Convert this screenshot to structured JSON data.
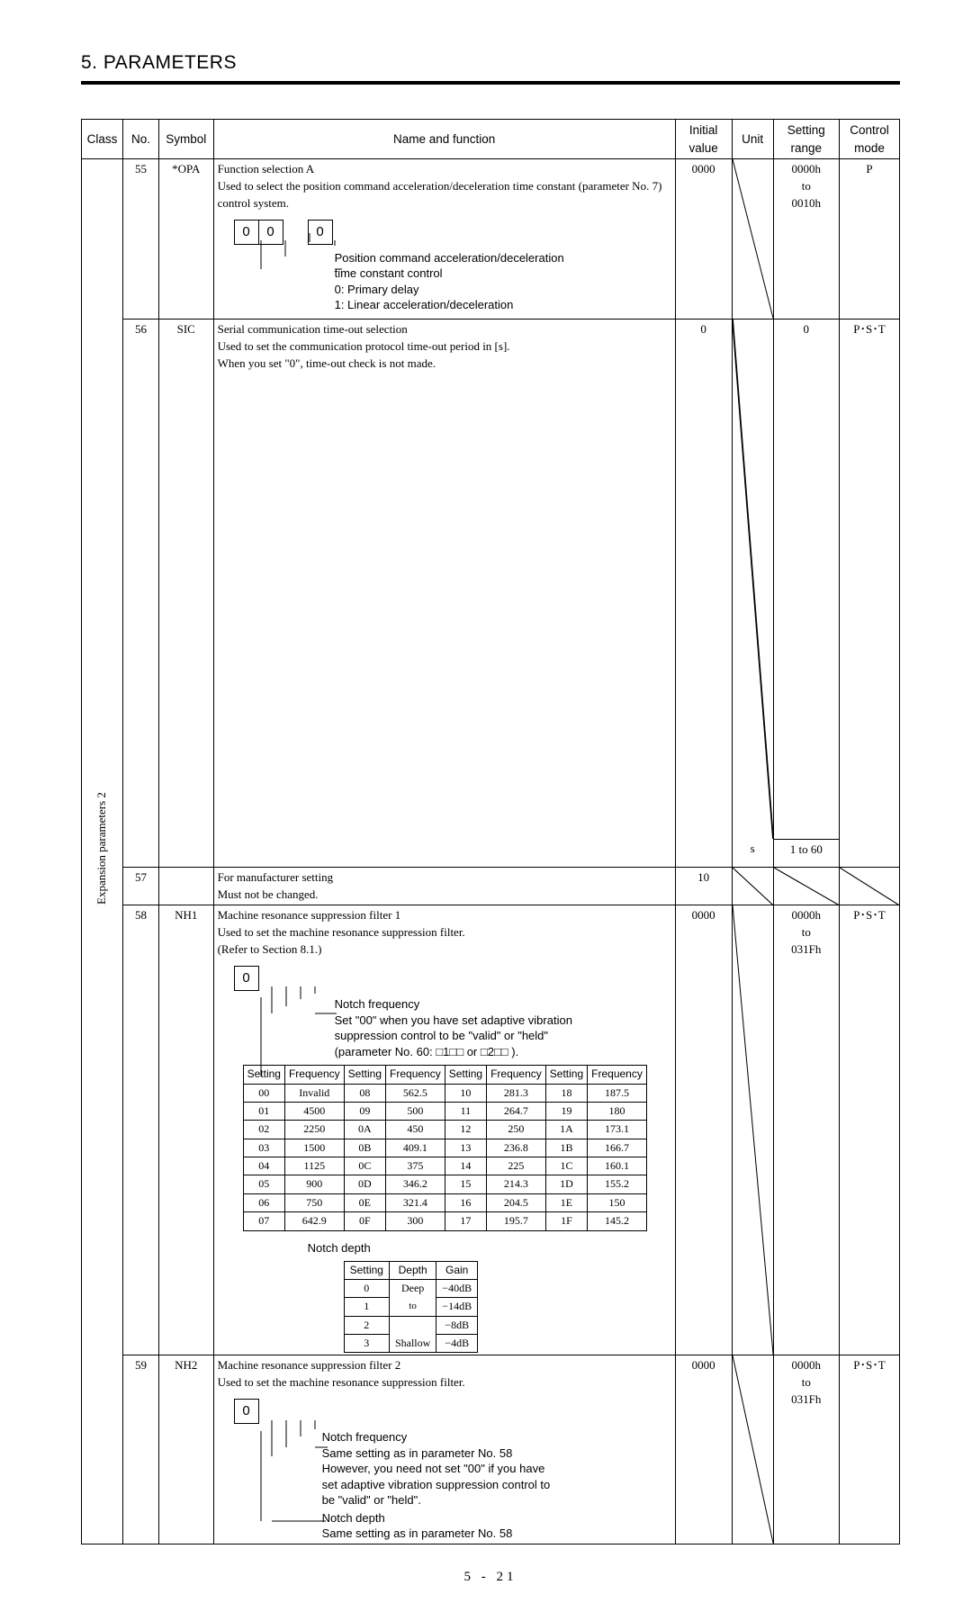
{
  "page": {
    "title": "5. PARAMETERS",
    "footer": "5 -  21"
  },
  "columns": {
    "class": "Class",
    "no": "No.",
    "symbol": "Symbol",
    "name": "Name and function",
    "initial": "Initial value",
    "unit": "Unit",
    "range": "Setting range",
    "mode": "Control mode"
  },
  "class_label": "Expansion parameters 2",
  "rows": {
    "r55": {
      "no": "55",
      "symbol": "*OPA",
      "title": "Function selection A",
      "desc1": "Used to select the position command acceleration/deceleration time constant (parameter No. 7) control system.",
      "digits": [
        "0",
        "0",
        "",
        "0"
      ],
      "digit_spacer_index": 2,
      "note_lines": [
        "Position command acceleration/deceleration",
        "time constant control",
        "0: Primary delay",
        "1: Linear acceleration/deceleration"
      ],
      "initial": "0000",
      "unit": "",
      "range": "0000h to 0010h",
      "mode": "P"
    },
    "r56": {
      "no": "56",
      "symbol": "SIC",
      "title": "Serial communication time-out selection",
      "desc1": "Used to set the communication protocol time-out period in [s].",
      "desc2": "When you set \"0\", time-out check is not made.",
      "initial": "0",
      "unit": "s",
      "range_top": "0",
      "range_bot": "1 to 60",
      "mode": "P･S･T"
    },
    "r57": {
      "no": "57",
      "symbol": "",
      "title": "For manufacturer setting",
      "desc1": "Must not be changed.",
      "initial": "10",
      "unit": "",
      "range": "",
      "mode": ""
    },
    "r58": {
      "no": "58",
      "symbol": "NH1",
      "title": "Machine resonance suppression filter 1",
      "desc1": "Used to set the machine resonance suppression filter.",
      "desc2": "(Refer to Section 8.1.)",
      "digit": "0",
      "notch_freq_label": "Notch frequency",
      "notch_freq_note": [
        "Set \"00\" when you have set adaptive vibration",
        "suppression control to be \"valid\" or \"held\"",
        "(parameter No. 60: □1□□ or □2□□ )."
      ],
      "freq_headers": [
        "Setting",
        "Frequency",
        "Setting",
        "Frequency",
        "Setting",
        "Frequency",
        "Setting",
        "Frequency"
      ],
      "freq_rows": [
        [
          "00",
          "Invalid",
          "08",
          "562.5",
          "10",
          "281.3",
          "18",
          "187.5"
        ],
        [
          "01",
          "4500",
          "09",
          "500",
          "11",
          "264.7",
          "19",
          "180"
        ],
        [
          "02",
          "2250",
          "0A",
          "450",
          "12",
          "250",
          "1A",
          "173.1"
        ],
        [
          "03",
          "1500",
          "0B",
          "409.1",
          "13",
          "236.8",
          "1B",
          "166.7"
        ],
        [
          "04",
          "1125",
          "0C",
          "375",
          "14",
          "225",
          "1C",
          "160.1"
        ],
        [
          "05",
          "900",
          "0D",
          "346.2",
          "15",
          "214.3",
          "1D",
          "155.2"
        ],
        [
          "06",
          "750",
          "0E",
          "321.4",
          "16",
          "204.5",
          "1E",
          "150"
        ],
        [
          "07",
          "642.9",
          "0F",
          "300",
          "17",
          "195.7",
          "1F",
          "145.2"
        ]
      ],
      "notch_depth_label": "Notch depth",
      "depth_headers": [
        "Setting",
        "Depth",
        "Gain"
      ],
      "depth_rows": [
        [
          "0",
          "Deep",
          "−40dB"
        ],
        [
          "1",
          "to",
          "−14dB"
        ],
        [
          "2",
          "",
          "−8dB"
        ],
        [
          "3",
          "Shallow",
          "−4dB"
        ]
      ],
      "initial": "0000",
      "unit": "",
      "range": "0000h to 031Fh",
      "mode": "P･S･T"
    },
    "r59": {
      "no": "59",
      "symbol": "NH2",
      "title": "Machine resonance suppression filter 2",
      "desc1": "Used to set the machine resonance suppression filter.",
      "digit": "0",
      "notch_freq_label": "Notch frequency",
      "notch_freq_note": [
        "Same setting as in parameter No. 58",
        "However, you need not set \"00\" if you have",
        "set adaptive vibration suppression control to",
        "be \"valid\" or \"held\"."
      ],
      "notch_depth_label": "Notch depth",
      "notch_depth_note": "Same setting as in parameter No. 58",
      "initial": "0000",
      "unit": "",
      "range": "0000h to 031Fh",
      "mode": "P･S･T"
    }
  }
}
